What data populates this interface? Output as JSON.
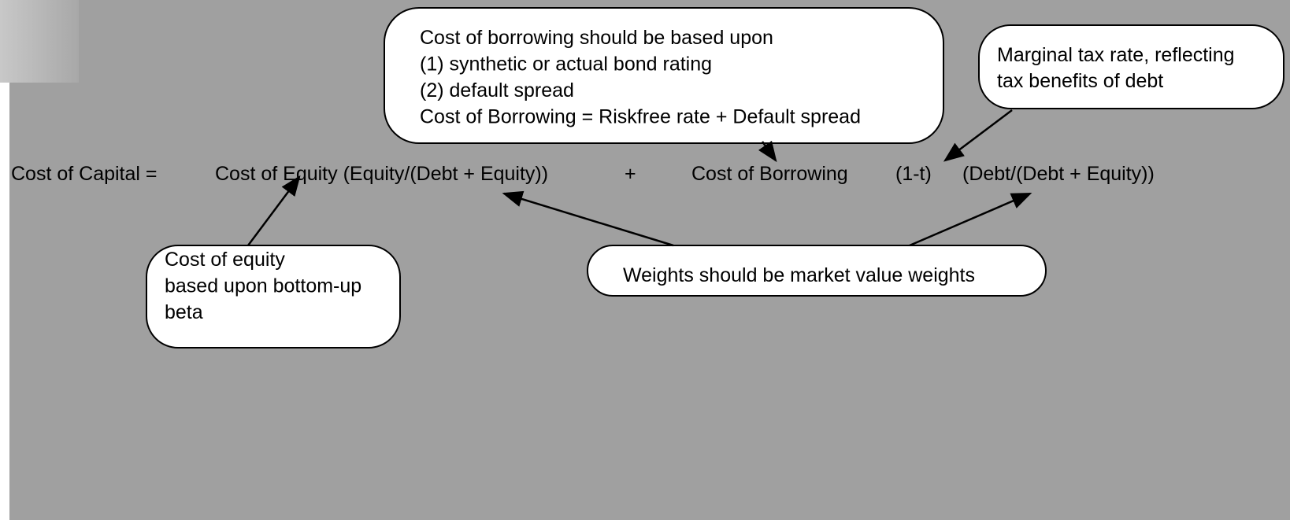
{
  "formula": [
    "Cost of Capital =",
    "Cost of Equity (Equity/(Debt + Equity))",
    "+",
    "Cost of Borrowing",
    "(1-t)",
    "(Debt/(Debt + Equity))"
  ],
  "callouts": [
    {
      "lines": [
        "Cost of borrowing should be based upon",
        "(1) synthetic or actual bond rating",
        "(2) default spread",
        "Cost of Borrowing = Riskfree rate + Default spread"
      ]
    },
    {
      "lines": [
        "Marginal tax rate, reflecting",
        "tax benefits of debt"
      ]
    },
    {
      "lines": [
        "Cost of equity",
        "based upon bottom-up",
        "beta"
      ]
    },
    {
      "lines": [
        "Weights should be market value weights"
      ]
    }
  ]
}
